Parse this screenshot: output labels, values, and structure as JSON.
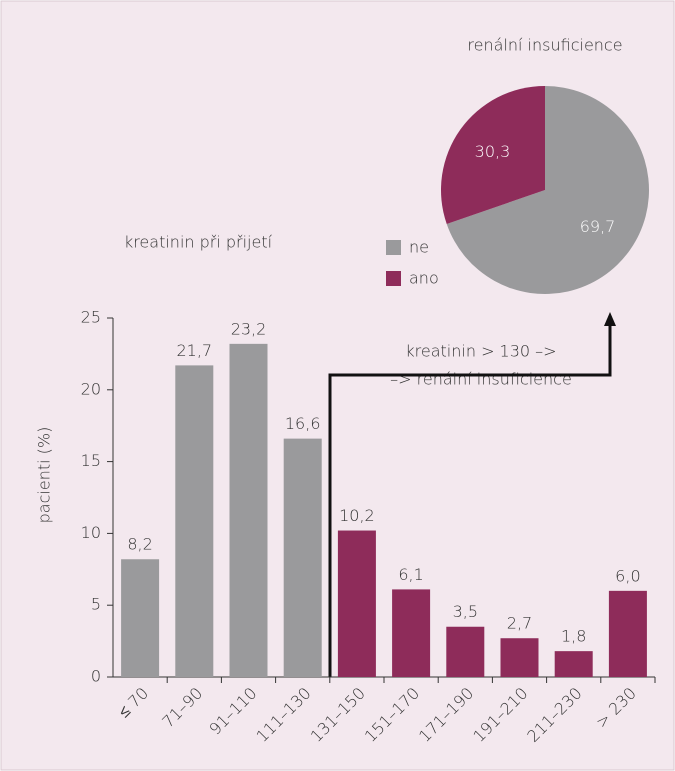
{
  "chart_data": [
    {
      "type": "bar",
      "title": "kreatinin při přijetí",
      "ylabel": "pacienti (%)",
      "categories": [
        "≤ 70",
        "71–90",
        "91–110",
        "111–130",
        "131–150",
        "151–170",
        "171–190",
        "191–210",
        "211–230",
        "> 230"
      ],
      "values": [
        8.2,
        21.7,
        23.2,
        16.6,
        10.2,
        6.1,
        3.5,
        2.7,
        1.8,
        6.0
      ],
      "value_labels": [
        "8,2",
        "21,7",
        "23,2",
        "16,6",
        "10,2",
        "6,1",
        "3,5",
        "2,7",
        "1,8",
        "6,0"
      ],
      "colors": [
        "#9a9a9c",
        "#9a9a9c",
        "#9a9a9c",
        "#9a9a9c",
        "#8e2c5a",
        "#8e2c5a",
        "#8e2c5a",
        "#8e2c5a",
        "#8e2c5a",
        "#8e2c5a"
      ],
      "ylim": [
        0,
        25
      ],
      "yticks": [
        0,
        5,
        10,
        15,
        20,
        25
      ],
      "annotation": [
        "kreatinin > 130 –>",
        "–> renální insuficience"
      ]
    },
    {
      "type": "pie",
      "title": "renální insuficience",
      "categories": [
        "ne",
        "ano"
      ],
      "values": [
        69.7,
        30.3
      ],
      "value_labels": [
        "69,7",
        "30,3"
      ],
      "colors": [
        "#9a9a9c",
        "#8e2c5a"
      ]
    }
  ]
}
